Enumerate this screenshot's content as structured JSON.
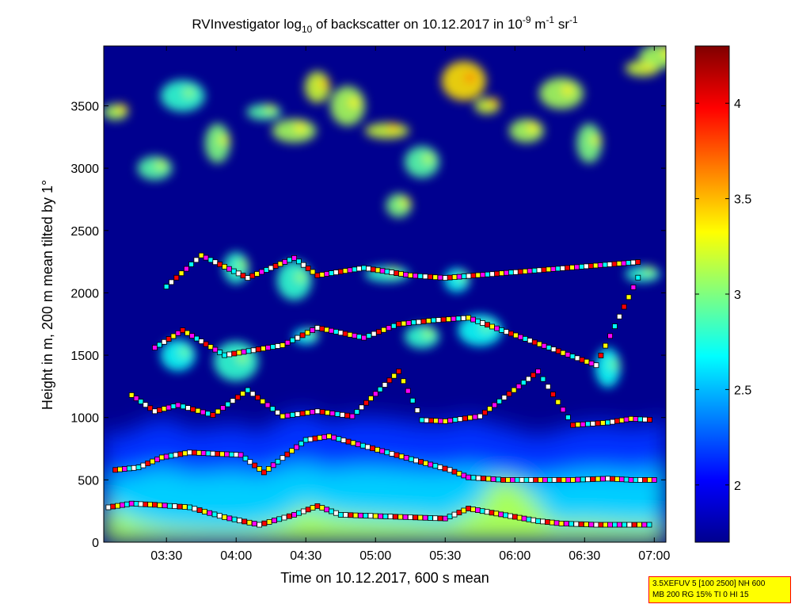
{
  "chart_data": {
    "type": "heatmap",
    "title": {
      "a": "RV",
      "b": "Investigator log",
      "sub10": "10",
      "c": " of backscatter on 10.12.2017 in 10",
      "sup_exp": "-9",
      "d": " m",
      "sup_m": "-1",
      "e": " sr",
      "sup_sr": "-1"
    },
    "xlabel": "Time on 10.12.2017, 600 s mean",
    "ylabel": "Height in m, 200 m mean tilted by 1°",
    "x_ticks": [
      "03:30",
      "04:00",
      "04:30",
      "05:00",
      "05:30",
      "06:00",
      "06:30",
      "07:00"
    ],
    "y_ticks": [
      "0",
      "500",
      "1000",
      "1500",
      "2000",
      "2500",
      "3000",
      "3500"
    ],
    "colorbar_ticks": [
      "2",
      "2.5",
      "3",
      "3.5",
      "4"
    ],
    "xlim": [
      "03:03",
      "07:05"
    ],
    "ylim": [
      0,
      3980
    ],
    "clim": [
      1.7,
      4.3
    ],
    "colormap": "jet",
    "surface_layer": {
      "time": [
        "03:03",
        "03:10",
        "03:20",
        "03:30",
        "03:40",
        "03:50",
        "04:00",
        "04:10",
        "04:20",
        "04:30",
        "04:40",
        "04:50",
        "05:00",
        "05:10",
        "05:20",
        "05:30",
        "05:35",
        "05:40",
        "05:45",
        "05:50",
        "06:00",
        "06:10",
        "06:15",
        "06:20",
        "06:30",
        "06:40",
        "06:50",
        "07:00",
        "07:05"
      ],
      "height": [
        300,
        230,
        160,
        120,
        110,
        100,
        100,
        120,
        170,
        290,
        220,
        200,
        190,
        180,
        170,
        150,
        190,
        260,
        280,
        500,
        500,
        300,
        170,
        150,
        160,
        150,
        140,
        140,
        140
      ]
    },
    "layer_tops": [
      {
        "time": [
          "03:03",
          "03:10",
          "03:20",
          "03:30",
          "03:40",
          "03:50",
          "04:00",
          "04:10",
          "04:20",
          "04:30",
          "04:40",
          "04:50",
          "05:00",
          "05:10",
          "05:20",
          "05:30",
          "05:40",
          "05:50",
          "06:00",
          "06:10",
          "06:20",
          "06:30",
          "06:40",
          "06:50",
          "07:00",
          "07:05"
        ],
        "height": [
          900,
          850,
          950,
          1000,
          900,
          920,
          950,
          880,
          1000,
          1050,
          950,
          1000,
          1000,
          980,
          950,
          950,
          1000,
          950,
          900,
          850,
          900,
          950,
          950,
          920,
          950,
          1000
        ]
      }
    ],
    "cloud_patches": [
      {
        "time": "03:08",
        "height": 3450,
        "intensity": 3.1
      },
      {
        "time": "03:25",
        "height": 3000,
        "intensity": 2.9
      },
      {
        "time": "03:37",
        "height": 3580,
        "intensity": 2.8
      },
      {
        "time": "03:52",
        "height": 3200,
        "intensity": 3.0
      },
      {
        "time": "04:12",
        "height": 3450,
        "intensity": 2.9
      },
      {
        "time": "04:25",
        "height": 3300,
        "intensity": 3.1
      },
      {
        "time": "04:35",
        "height": 3650,
        "intensity": 3.2
      },
      {
        "time": "04:48",
        "height": 3500,
        "intensity": 3.1
      },
      {
        "time": "05:05",
        "height": 3300,
        "intensity": 3.2
      },
      {
        "time": "05:10",
        "height": 2700,
        "intensity": 3.0
      },
      {
        "time": "05:20",
        "height": 3050,
        "intensity": 2.9
      },
      {
        "time": "05:38",
        "height": 3700,
        "intensity": 3.4
      },
      {
        "time": "05:48",
        "height": 3500,
        "intensity": 3.2
      },
      {
        "time": "06:05",
        "height": 3300,
        "intensity": 3.1
      },
      {
        "time": "06:20",
        "height": 3600,
        "intensity": 3.1
      },
      {
        "time": "06:32",
        "height": 3200,
        "intensity": 3.0
      },
      {
        "time": "06:55",
        "height": 3800,
        "intensity": 3.2
      },
      {
        "time": "07:03",
        "height": 3900,
        "intensity": 3.1
      },
      {
        "time": "04:00",
        "height": 2200,
        "intensity": 2.8
      },
      {
        "time": "04:25",
        "height": 2100,
        "intensity": 2.8
      },
      {
        "time": "05:05",
        "height": 2150,
        "intensity": 2.8
      },
      {
        "time": "05:35",
        "height": 2100,
        "intensity": 2.7
      },
      {
        "time": "03:35",
        "height": 1500,
        "intensity": 2.7
      },
      {
        "time": "04:00",
        "height": 1450,
        "intensity": 2.8
      },
      {
        "time": "04:30",
        "height": 1650,
        "intensity": 2.7
      },
      {
        "time": "05:20",
        "height": 1650,
        "intensity": 2.8
      },
      {
        "time": "05:45",
        "height": 1700,
        "intensity": 2.7
      },
      {
        "time": "06:40",
        "height": 1400,
        "intensity": 2.7
      },
      {
        "time": "06:55",
        "height": 2150,
        "intensity": 2.8
      }
    ],
    "marker_rows": [
      {
        "time": [
          "03:05",
          "03:15",
          "03:25",
          "03:40",
          "03:55",
          "04:10",
          "04:25",
          "04:35",
          "04:45",
          "05:00",
          "05:15",
          "05:30",
          "05:40",
          "06:10",
          "06:20",
          "06:35",
          "06:45",
          "07:00"
        ],
        "height": [
          280,
          310,
          300,
          280,
          200,
          140,
          220,
          290,
          220,
          210,
          200,
          190,
          270,
          170,
          150,
          140,
          140,
          140
        ]
      },
      {
        "time": [
          "03:08",
          "03:18",
          "03:28",
          "03:40",
          "04:02",
          "04:12",
          "04:30",
          "04:40",
          "05:32",
          "05:40",
          "05:55",
          "06:05",
          "06:25",
          "06:40",
          "06:50",
          "07:02"
        ],
        "height": [
          580,
          600,
          680,
          720,
          700,
          560,
          820,
          850,
          580,
          520,
          500,
          500,
          500,
          510,
          500,
          500
        ]
      },
      {
        "time": [
          "03:15",
          "03:25",
          "03:35",
          "03:50",
          "04:05",
          "04:20",
          "04:35",
          "04:50",
          "05:10",
          "05:20",
          "05:30",
          "05:45",
          "06:10",
          "06:25",
          "06:40",
          "06:50",
          "07:00"
        ],
        "height": [
          1180,
          1050,
          1100,
          1020,
          1220,
          1010,
          1050,
          1010,
          1370,
          980,
          970,
          1010,
          1370,
          940,
          960,
          990,
          980
        ]
      },
      {
        "time": [
          "03:25",
          "03:37",
          "03:55",
          "04:20",
          "04:35",
          "04:55",
          "05:10",
          "05:25",
          "05:40",
          "06:35",
          "06:55"
        ],
        "height": [
          1560,
          1700,
          1500,
          1580,
          1720,
          1640,
          1750,
          1780,
          1800,
          1420,
          2200
        ]
      },
      {
        "time": [
          "03:30",
          "03:45",
          "04:05",
          "04:25",
          "04:35",
          "04:55",
          "05:15",
          "05:30",
          "06:55"
        ],
        "height": [
          2050,
          2300,
          2120,
          2280,
          2140,
          2200,
          2140,
          2120,
          2250
        ]
      }
    ]
  },
  "annotation": {
    "line1": "3.5XEFUV 5 [100 2500] NH 600",
    "line2": "MB 200 RG 15% TI 0 HI 15"
  },
  "colors": {
    "highlight_box_fill": "#ffff00",
    "highlight_box_border": "#ff0000",
    "marker_colors": [
      "#ffffff",
      "#ff0000",
      "#ffff00",
      "#ff00ff",
      "#00ffff",
      "#000000"
    ]
  }
}
